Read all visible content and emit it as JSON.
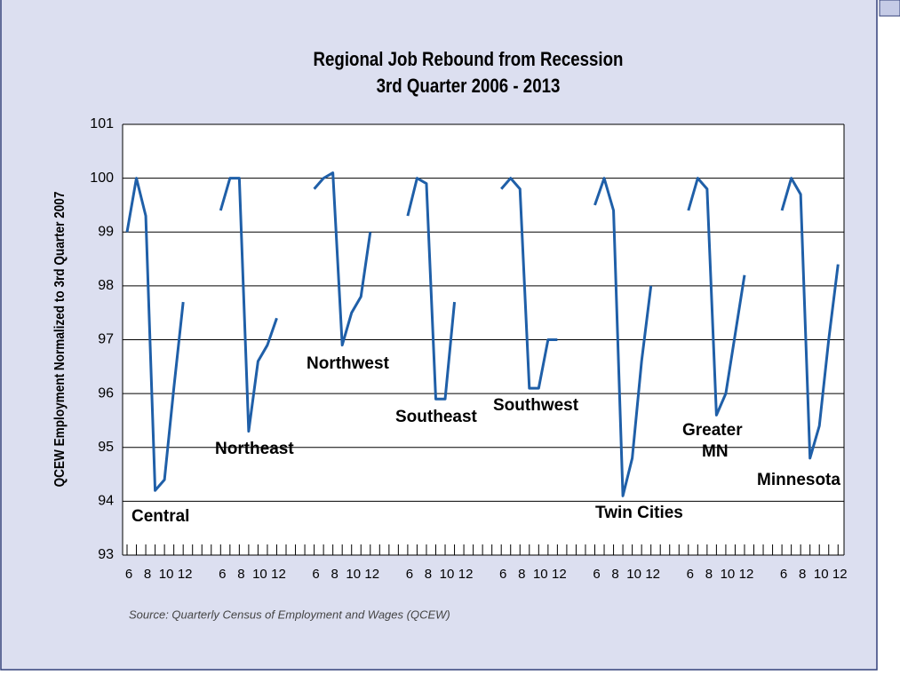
{
  "chart_data": {
    "type": "line",
    "title": [
      "Regional Job Rebound from Recession",
      "3rd Quarter 2006 - 2013"
    ],
    "y_label": "QCEW Employment Normalized to 3rd Quarter 2007",
    "source": "Source: Quarterly Census of Employment and Wages (QCEW)",
    "categories": [
      "6",
      null,
      "8",
      null,
      "10",
      null,
      "12",
      null,
      null,
      null,
      "6",
      null,
      "8",
      null,
      "10",
      null,
      "12",
      null,
      null,
      null,
      "6",
      null,
      "8",
      null,
      "10",
      null,
      "12",
      null,
      null,
      null,
      "6",
      null,
      "8",
      null,
      "10",
      null,
      "12",
      null,
      null,
      null,
      "6",
      null,
      "8",
      null,
      "10",
      null,
      "12",
      null,
      null,
      null,
      "6",
      null,
      "8",
      null,
      "10",
      null,
      "12",
      null,
      null,
      null,
      "6",
      null,
      "8",
      null,
      "10",
      null,
      "12",
      null,
      null,
      null,
      "6",
      null,
      "8",
      null,
      "10",
      null,
      "12"
    ],
    "series": [
      {
        "color": "#1f5fa8",
        "values": [
          99.0,
          100.0,
          99.3,
          94.2,
          94.4,
          96.1,
          97.7,
          null,
          null,
          null,
          99.4,
          100.0,
          100.0,
          95.3,
          96.6,
          96.9,
          97.4,
          null,
          null,
          null,
          99.8,
          100.0,
          100.1,
          96.9,
          97.5,
          97.8,
          99.0,
          null,
          null,
          null,
          99.3,
          100.0,
          99.9,
          95.9,
          95.9,
          97.7,
          null,
          null,
          null,
          null,
          99.8,
          100.0,
          99.8,
          96.1,
          96.1,
          97.0,
          97.0,
          null,
          null,
          null,
          99.5,
          100.0,
          99.4,
          94.1,
          94.8,
          96.6,
          98.0,
          null,
          null,
          null,
          99.4,
          100.0,
          99.8,
          95.6,
          96.0,
          97.1,
          98.2,
          null,
          null,
          null,
          99.4,
          100.0,
          99.7,
          94.8,
          95.4,
          97.0,
          98.4
        ]
      }
    ],
    "group_labels": [
      [
        "Central"
      ],
      [
        "Northeast"
      ],
      [
        "Northwest"
      ],
      [
        "Southeast"
      ],
      [
        "Southwest"
      ],
      [
        "Twin Cities"
      ],
      [
        "Greater",
        "MN"
      ],
      [
        "Minnesota"
      ]
    ],
    "ylim": [
      93,
      101
    ],
    "yticks": [
      93,
      94,
      95,
      96,
      97,
      98,
      99,
      100,
      101
    ],
    "grid": true
  }
}
